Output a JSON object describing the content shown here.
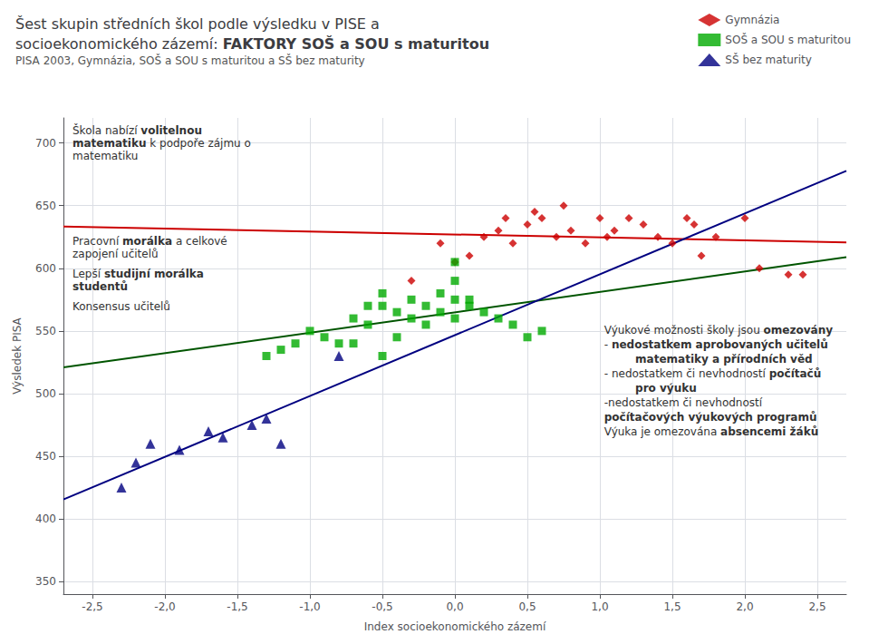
{
  "chart_data": {
    "type": "scatter",
    "title": [
      {
        "text": "Šest skupin středních škol podle výsledku v PISE a\nsocioekonomického zázemí: "
      },
      {
        "text": "FAKTORY SOŠ a SOU s maturitou",
        "bold": true
      }
    ],
    "subtitle": "PISA 2003, Gymnázia, SOŠ a SOU s maturitou a SŠ bez maturity",
    "xlabel": "Index socioekonomického zázemí",
    "ylabel": "Výsledek PISA",
    "xlim": [
      -2.7,
      2.7
    ],
    "ylim": [
      340,
      720
    ],
    "xticks": [
      {
        "value": -2.5,
        "label": "-2,5"
      },
      {
        "value": -2.0,
        "label": "-2,0"
      },
      {
        "value": -1.5,
        "label": "-1,5"
      },
      {
        "value": -1.0,
        "label": "-1,0"
      },
      {
        "value": -0.5,
        "label": "-0,5"
      },
      {
        "value": 0.0,
        "label": "0,0"
      },
      {
        "value": 0.5,
        "label": "0,5"
      },
      {
        "value": 1.0,
        "label": "1,0"
      },
      {
        "value": 1.5,
        "label": "1,5"
      },
      {
        "value": 2.0,
        "label": "2,0"
      },
      {
        "value": 2.5,
        "label": "2,5"
      }
    ],
    "yticks": [
      350,
      400,
      450,
      500,
      550,
      600,
      650,
      700
    ],
    "grid": true,
    "legend": "upper right",
    "series": [
      {
        "name": "Gymnázia",
        "type": "scatter",
        "marker": "diamond",
        "color": "#cc0000",
        "x": [
          -0.3,
          -0.1,
          0.0,
          0.1,
          0.2,
          0.3,
          0.35,
          0.4,
          0.5,
          0.55,
          0.6,
          0.7,
          0.75,
          0.8,
          0.9,
          1.0,
          1.05,
          1.1,
          1.2,
          1.3,
          1.4,
          1.5,
          1.6,
          1.65,
          1.7,
          1.8,
          2.0,
          2.1,
          2.3,
          2.4
        ],
        "values": [
          590,
          620,
          605,
          610,
          625,
          630,
          640,
          620,
          635,
          645,
          640,
          625,
          650,
          630,
          620,
          640,
          625,
          630,
          640,
          635,
          625,
          620,
          640,
          635,
          610,
          625,
          640,
          600,
          595,
          595
        ]
      },
      {
        "name": "SOŠ a SOU s maturitou",
        "type": "scatter",
        "marker": "square",
        "color": "#00aa00",
        "x": [
          -0.7,
          -0.6,
          -0.5,
          -0.5,
          -0.4,
          -0.3,
          -0.3,
          -0.2,
          -0.1,
          -0.1,
          0.0,
          0.0,
          0.0,
          0.1,
          0.2,
          0.3,
          0.4,
          0.5,
          -0.8,
          -0.9,
          -1.0,
          -1.1,
          -1.2,
          -1.3,
          -0.6,
          -0.4,
          -0.2,
          0.1,
          0.6,
          0.0,
          -0.7,
          -0.5
        ],
        "values": [
          560,
          555,
          570,
          580,
          565,
          575,
          560,
          570,
          565,
          580,
          575,
          560,
          590,
          570,
          565,
          560,
          555,
          545,
          540,
          545,
          550,
          540,
          535,
          530,
          570,
          545,
          555,
          575,
          550,
          605,
          540,
          530
        ]
      },
      {
        "name": "SŠ bez maturity",
        "type": "scatter",
        "marker": "triangle",
        "color": "#000080",
        "x": [
          -2.3,
          -2.2,
          -2.1,
          -1.9,
          -1.7,
          -1.6,
          -1.4,
          -1.3,
          -1.2,
          -0.8
        ],
        "values": [
          425,
          445,
          460,
          455,
          470,
          465,
          475,
          480,
          460,
          530
        ]
      },
      {
        "type": "line",
        "color": "#cc0000",
        "x": [
          -2.7,
          2.7
        ],
        "values": [
          633.352234,
          620.658848
        ]
      },
      {
        "type": "line",
        "color": "#005500",
        "x": [
          -2.7,
          2.7
        ],
        "values": [
          520.898535,
          608.860911
        ]
      },
      {
        "type": "line",
        "color": "#000080",
        "x": [
          -2.7,
          2.7
        ],
        "values": [
          415.496437,
          677.800475
        ]
      }
    ],
    "annotations": [
      [
        {
          "text": "Škola nabízí "
        },
        {
          "text": "volitelnou\nmatematiku",
          "bold": true
        },
        {
          "text": " k podpoře zájmu o\nmatematiku"
        }
      ],
      [
        {
          "text": "Pracovní "
        },
        {
          "text": "morálka",
          "bold": true
        },
        {
          "text": " a celkové\nzapojení učitelů"
        }
      ],
      [
        {
          "text": "Lepší "
        },
        {
          "text": "studijní morálka\nstudentů",
          "bold": true
        }
      ],
      [
        {
          "text": "Konsensus učitelů"
        }
      ],
      [
        {
          "text": "Výukové možnosti školy jsou "
        },
        {
          "text": "omezovány",
          "bold": true
        },
        {
          "text": "\n- "
        },
        {
          "text": "nedostatkem aprobovaných učitelů",
          "bold": true
        },
        {
          "text": "\n         "
        },
        {
          "text": "matematiky a přírodních věd",
          "bold": true
        },
        {
          "text": "\n- nedostatkem či nevhodností "
        },
        {
          "text": "počítačů",
          "bold": true
        },
        {
          "text": "\n         "
        },
        {
          "text": "pro výuku",
          "bold": true
        },
        {
          "text": "\n-nedostatkem či nevhodností"
        },
        {
          "text": "\npočítačových výukových programů",
          "bold": true
        },
        {
          "text": "\nVýuka je omezována "
        },
        {
          "text": "absencemi žáků",
          "bold": true
        }
      ]
    ]
  }
}
